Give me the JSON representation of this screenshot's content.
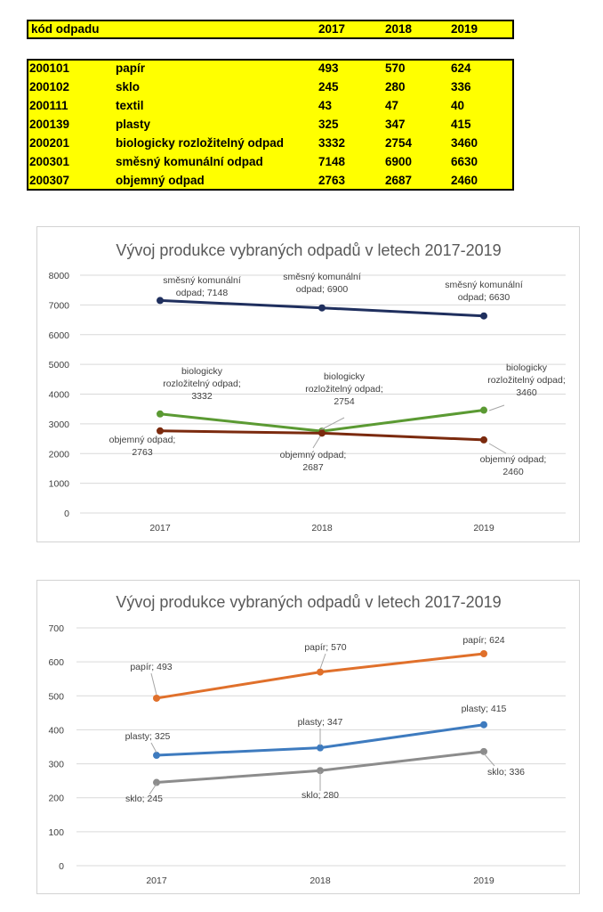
{
  "table": {
    "header": {
      "code": "kód odpadu",
      "y2017": "2017",
      "y2018": "2018",
      "y2019": "2019"
    },
    "rows": [
      {
        "code": "200101",
        "name": "papír",
        "v2017": "493",
        "v2018": "570",
        "v2019": "624"
      },
      {
        "code": "200102",
        "name": "sklo",
        "v2017": "245",
        "v2018": "280",
        "v2019": "336"
      },
      {
        "code": "200111",
        "name": "textil",
        "v2017": "43",
        "v2018": "47",
        "v2019": "40"
      },
      {
        "code": "200139",
        "name": "plasty",
        "v2017": "325",
        "v2018": "347",
        "v2019": "415"
      },
      {
        "code": "200201",
        "name": "biologicky rozložitelný odpad",
        "v2017": "3332",
        "v2018": "2754",
        "v2019": "3460"
      },
      {
        "code": "200301",
        "name": "směsný komunální odpad",
        "v2017": "7148",
        "v2018": "6900",
        "v2019": "6630"
      },
      {
        "code": "200307",
        "name": "objemný odpad",
        "v2017": "2763",
        "v2018": "2687",
        "v2019": "2460"
      }
    ],
    "background_color": "#ffff00"
  },
  "chart_data": [
    {
      "type": "line",
      "title": "Vývoj produkce vybraných odpadů v letech 2017-2019",
      "categories": [
        "2017",
        "2018",
        "2019"
      ],
      "ylim": [
        0,
        8000
      ],
      "yticks": [
        0,
        1000,
        2000,
        3000,
        4000,
        5000,
        6000,
        7000,
        8000
      ],
      "grid": true,
      "series": [
        {
          "name": "směsný komunální odpad",
          "values": [
            7148,
            6900,
            6630
          ],
          "color": "#1f2f5e",
          "labels": [
            "směsný komunální odpad; 7148",
            "směsný komunální odpad; 6900",
            "směsný komunální odpad; 6630"
          ]
        },
        {
          "name": "biologicky rozložitelný odpad",
          "values": [
            3332,
            2754,
            3460
          ],
          "color": "#5b9a33",
          "labels": [
            "biologicky rozložitelný odpad; 3332",
            "biologicky rozložitelný odpad; 2754",
            "biologicky rozložitelný odpad; 3460"
          ]
        },
        {
          "name": "objemný odpad",
          "values": [
            2763,
            2687,
            2460
          ],
          "color": "#7b2a0e",
          "labels": [
            "objemný odpad; 2763",
            "objemný odpad; 2687",
            "objemný odpad; 2460"
          ]
        }
      ]
    },
    {
      "type": "line",
      "title": "Vývoj produkce vybraných odpadů v letech 2017-2019",
      "categories": [
        "2017",
        "2018",
        "2019"
      ],
      "ylim": [
        0,
        700
      ],
      "yticks": [
        0,
        100,
        200,
        300,
        400,
        500,
        600,
        700
      ],
      "grid": true,
      "series": [
        {
          "name": "papír",
          "values": [
            493,
            570,
            624
          ],
          "color": "#e0702b",
          "labels": [
            "papír; 493",
            "papír; 570",
            "papír; 624"
          ]
        },
        {
          "name": "plasty",
          "values": [
            325,
            347,
            415
          ],
          "color": "#3e7bbf",
          "labels": [
            "plasty; 325",
            "plasty; 347",
            "plasty; 415"
          ]
        },
        {
          "name": "sklo",
          "values": [
            245,
            280,
            336
          ],
          "color": "#8c8c8c",
          "labels": [
            "sklo; 245",
            "sklo; 280",
            "sklo; 336"
          ]
        }
      ]
    }
  ]
}
